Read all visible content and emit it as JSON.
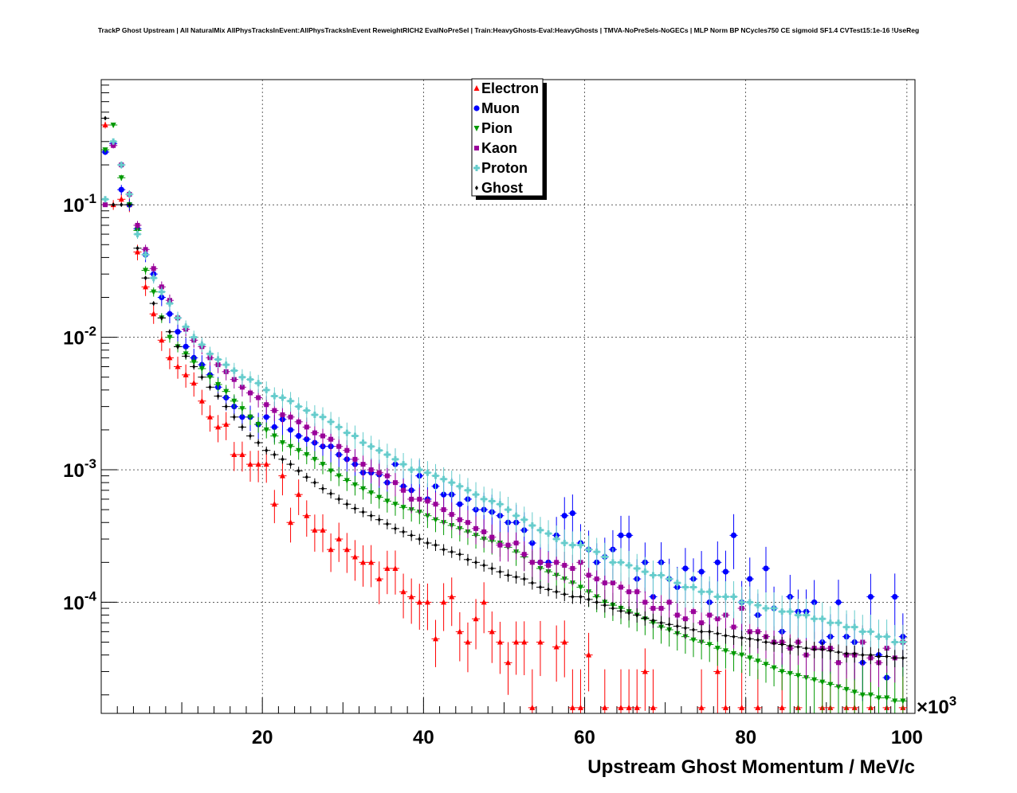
{
  "chart_data": {
    "type": "scatter",
    "title": "TrackP Ghost Upstream | All NaturalMix AllPhysTracksInEvent:AllPhysTracksInEvent ReweightRICH2 EvalNoPreSel | Train:HeavyGhosts-Eval:HeavyGhosts | TMVA-NoPreSels-NoGECs | MLP Norm BP NCycles750 CE sigmoid SF1.4 CVTest15:1e-16 !UseReg",
    "xlabel": "Upstream Ghost Momentum / MeV/c",
    "x_multiplier": "×10",
    "x_multiplier_exp": "3",
    "ylabel": "",
    "yscale": "log",
    "xlim": [
      0,
      101
    ],
    "ylim": [
      1.45e-05,
      0.88
    ],
    "grid": true,
    "legend_position": "top-center",
    "x_ticks": [
      "20",
      "40",
      "60",
      "80",
      "100"
    ],
    "x_tick_values": [
      20,
      40,
      60,
      80,
      100
    ],
    "y_ticks": [
      {
        "base": "10",
        "exp": "-1",
        "value": 0.1
      },
      {
        "base": "10",
        "exp": "-2",
        "value": 0.01
      },
      {
        "base": "10",
        "exp": "-3",
        "value": 0.001
      },
      {
        "base": "10",
        "exp": "-4",
        "value": 0.0001
      }
    ],
    "series": [
      {
        "name": "Electron",
        "color": "#ff0000",
        "marker": "triangle-up",
        "err_scale": 0.06,
        "values": [
          0.4,
          0.1,
          0.11,
          0.1,
          0.044,
          0.024,
          0.015,
          0.0095,
          0.007,
          0.006,
          0.0052,
          0.0045,
          0.0033,
          0.0025,
          0.0021,
          0.0022,
          0.0013,
          0.0013,
          0.0011,
          0.0011,
          0.0011,
          0.00055,
          0.0009,
          0.0004,
          0.00065,
          0.00045,
          0.00035,
          0.00035,
          0.00025,
          0.0003,
          0.00025,
          0.00022,
          0.0002,
          0.0002,
          0.00015,
          0.00018,
          0.00018,
          0.00012,
          0.00011,
          0.0001,
          0.0001,
          5.3e-05,
          0.0001,
          0.00011,
          6e-05,
          5e-05,
          7.5e-05,
          0.0001,
          6e-05,
          5e-05,
          3.5e-05,
          5e-05,
          5e-05,
          1.6e-05,
          5e-05,
          null,
          4.6e-05,
          5e-05,
          1.6e-05,
          1.6e-05,
          4e-05,
          null,
          1.6e-05,
          null,
          1.6e-05,
          1.6e-05,
          1.6e-05,
          3e-05,
          1.6e-05,
          null,
          null,
          null,
          null,
          null,
          1.6e-05,
          null,
          3e-05,
          1.6e-05,
          null,
          1.6e-05,
          null,
          1.6e-05,
          null,
          null,
          1.6e-05,
          null,
          1.6e-05,
          null,
          null,
          1.6e-05,
          1.6e-05,
          null,
          1.6e-05,
          1.6e-05,
          null,
          1.6e-05,
          null,
          1.6e-05,
          null,
          1.6e-05
        ]
      },
      {
        "name": "Muon",
        "color": "#0000ff",
        "marker": "circle",
        "err_scale": 0.05,
        "values": [
          0.25,
          0.29,
          0.13,
          0.1,
          0.066,
          0.042,
          0.03,
          0.02,
          0.015,
          0.011,
          0.0085,
          0.007,
          0.0062,
          0.0052,
          0.0042,
          0.0035,
          0.003,
          0.0025,
          0.0025,
          0.0022,
          0.0025,
          0.0021,
          0.0024,
          0.002,
          0.0018,
          0.0017,
          0.0016,
          0.0015,
          0.0015,
          0.0013,
          0.0012,
          0.0011,
          0.00095,
          0.00095,
          0.00092,
          0.0008,
          0.0011,
          0.00075,
          0.0007,
          0.0009,
          0.0006,
          0.00075,
          0.00065,
          0.00065,
          0.00055,
          0.0006,
          0.0005,
          0.0005,
          0.00048,
          0.00045,
          0.0004,
          0.0004,
          0.00035,
          0.00028,
          0.0002,
          0.0002,
          0.00032,
          0.00045,
          0.00047,
          0.00028,
          0.00025,
          0.0002,
          0.00022,
          0.00025,
          0.00032,
          0.00032,
          0.00015,
          0.0002,
          0.00011,
          0.0002,
          0.00015,
          0.00013,
          0.00018,
          0.00015,
          0.00017,
          0.0001,
          0.0002,
          0.00017,
          0.00032,
          0.0001,
          0.00015,
          8e-05,
          0.00018,
          9e-05,
          6e-05,
          0.00011,
          8.5e-05,
          8.5e-05,
          0.0001,
          5e-05,
          5.5e-05,
          0.0001,
          5.5e-05,
          5e-05,
          3.5e-05,
          0.00011,
          4e-05,
          2.7e-05,
          0.00011,
          5.5e-05
        ]
      },
      {
        "name": "Pion",
        "color": "#009900",
        "marker": "triangle-down",
        "err_scale": 0.03,
        "values": [
          0.26,
          0.4,
          0.16,
          0.1,
          0.064,
          0.032,
          0.022,
          0.014,
          0.01,
          0.0085,
          0.0075,
          0.0065,
          0.0058,
          0.005,
          0.0044,
          0.0039,
          0.0033,
          0.0029,
          0.0025,
          0.0022,
          0.002,
          0.0018,
          0.0016,
          0.0015,
          0.0014,
          0.0013,
          0.0012,
          0.0011,
          0.00098,
          0.0009,
          0.00083,
          0.00077,
          0.00072,
          0.00067,
          0.00062,
          0.00058,
          0.00055,
          0.00052,
          0.0005,
          0.00048,
          0.00045,
          0.00042,
          0.0004,
          0.00038,
          0.00036,
          0.00034,
          0.00032,
          0.0003,
          0.00029,
          0.00028,
          0.00026,
          0.00024,
          0.00022,
          0.0002,
          0.00018,
          0.00017,
          0.00016,
          0.00015,
          0.00014,
          0.00013,
          0.00012,
          0.00011,
          0.0001,
          9.5e-05,
          9e-05,
          8.5e-05,
          8e-05,
          7.5e-05,
          7e-05,
          6.5e-05,
          6.2e-05,
          5.8e-05,
          5.5e-05,
          5.2e-05,
          5e-05,
          4.8e-05,
          4.5e-05,
          4.3e-05,
          4.1e-05,
          4e-05,
          3.8e-05,
          3.6e-05,
          3.4e-05,
          3.2e-05,
          3e-05,
          2.9e-05,
          2.8e-05,
          2.7e-05,
          2.6e-05,
          2.5e-05,
          2.4e-05,
          2.3e-05,
          2.2e-05,
          2.1e-05,
          2e-05,
          2e-05,
          1.9e-05,
          1.9e-05,
          1.8e-05,
          1.8e-05
        ]
      },
      {
        "name": "Kaon",
        "color": "#990099",
        "marker": "square",
        "err_scale": 0.035,
        "values": [
          0.1,
          0.28,
          0.2,
          0.12,
          0.07,
          0.046,
          0.033,
          0.024,
          0.019,
          0.014,
          0.0115,
          0.0095,
          0.0085,
          0.007,
          0.0062,
          0.0055,
          0.0048,
          0.0042,
          0.0038,
          0.0035,
          0.0031,
          0.0028,
          0.0026,
          0.0025,
          0.0023,
          0.0021,
          0.0019,
          0.0018,
          0.0017,
          0.0015,
          0.0014,
          0.0012,
          0.0011,
          0.001,
          0.00095,
          0.0009,
          0.0008,
          0.0007,
          0.0006,
          0.0006,
          0.00058,
          0.00055,
          0.0005,
          0.00046,
          0.00042,
          0.0004,
          0.00036,
          0.00034,
          0.00031,
          0.00027,
          0.00027,
          0.00028,
          0.00023,
          0.0002,
          0.0002,
          0.00019,
          0.0002,
          0.00019,
          0.00018,
          0.0002,
          0.00016,
          0.00015,
          0.00014,
          0.00014,
          0.00013,
          0.00012,
          0.00012,
          0.0001,
          9e-05,
          9e-05,
          0.0001,
          8e-05,
          7.5e-05,
          8.5e-05,
          7e-05,
          8e-05,
          7.5e-05,
          8e-05,
          6.5e-05,
          9e-05,
          6e-05,
          6e-05,
          5.5e-05,
          5e-05,
          5e-05,
          4.5e-05,
          5e-05,
          4e-05,
          4.5e-05,
          4.5e-05,
          4.5e-05,
          3.5e-05,
          4e-05,
          4e-05,
          5e-05,
          3.8e-05,
          3.5e-05,
          4.5e-05,
          3.8e-05,
          5e-05
        ]
      },
      {
        "name": "Proton",
        "color": "#66cccc",
        "marker": "cross",
        "err_scale": 0.035,
        "values": [
          0.11,
          0.3,
          0.2,
          0.12,
          0.06,
          0.042,
          0.028,
          0.022,
          0.018,
          0.014,
          0.012,
          0.01,
          0.0088,
          0.0075,
          0.0068,
          0.0062,
          0.0056,
          0.005,
          0.0048,
          0.0045,
          0.004,
          0.0036,
          0.0035,
          0.0033,
          0.003,
          0.0028,
          0.0026,
          0.0025,
          0.0023,
          0.0021,
          0.0019,
          0.0018,
          0.0016,
          0.0015,
          0.0014,
          0.0013,
          0.0012,
          0.0011,
          0.001,
          0.001,
          0.00095,
          0.0009,
          0.00085,
          0.0008,
          0.00075,
          0.0007,
          0.00065,
          0.0006,
          0.00058,
          0.00055,
          0.0005,
          0.00045,
          0.00042,
          0.00038,
          0.00035,
          0.00033,
          0.0003,
          0.00028,
          0.00027,
          0.00027,
          0.00025,
          0.00024,
          0.00022,
          0.0002,
          0.0002,
          0.00019,
          0.00018,
          0.00017,
          0.00016,
          0.00016,
          0.00015,
          0.00014,
          0.00013,
          0.00013,
          0.00012,
          0.00012,
          0.00011,
          0.00011,
          0.00011,
          0.0001,
          0.0001,
          9.5e-05,
          9e-05,
          9e-05,
          8.5e-05,
          8.5e-05,
          8e-05,
          8e-05,
          7.5e-05,
          7.5e-05,
          7e-05,
          7e-05,
          6.5e-05,
          6.5e-05,
          6e-05,
          6e-05,
          5.5e-05,
          5.5e-05,
          5e-05,
          5e-05
        ]
      },
      {
        "name": "Ghost",
        "color": "#000000",
        "marker": "diamond",
        "err_scale": 0.015,
        "values": [
          0.45,
          0.1,
          0.1,
          0.1,
          0.047,
          0.028,
          0.018,
          0.014,
          0.011,
          0.0085,
          0.0072,
          0.006,
          0.005,
          0.0042,
          0.0036,
          0.003,
          0.0025,
          0.0021,
          0.0018,
          0.0016,
          0.0014,
          0.0013,
          0.0012,
          0.0011,
          0.00098,
          0.00088,
          0.0008,
          0.00072,
          0.00066,
          0.0006,
          0.00055,
          0.00051,
          0.00048,
          0.00045,
          0.00042,
          0.00039,
          0.00036,
          0.00034,
          0.00032,
          0.0003,
          0.00028,
          0.00027,
          0.00025,
          0.00024,
          0.00023,
          0.00021,
          0.0002,
          0.00019,
          0.00018,
          0.00017,
          0.00016,
          0.000155,
          0.00015,
          0.00014,
          0.00013,
          0.000125,
          0.00012,
          0.000115,
          0.00011,
          0.00011,
          0.000105,
          0.0001,
          9.5e-05,
          9e-05,
          8.6e-05,
          8.3e-05,
          8e-05,
          7.6e-05,
          7.3e-05,
          7e-05,
          6.8e-05,
          6.6e-05,
          6.4e-05,
          6.2e-05,
          6e-05,
          6e-05,
          5.8e-05,
          5.6e-05,
          5.5e-05,
          5.4e-05,
          5.3e-05,
          5.2e-05,
          5e-05,
          4.9e-05,
          4.8e-05,
          4.7e-05,
          4.6e-05,
          4.5e-05,
          4.4e-05,
          4.4e-05,
          4.3e-05,
          4.2e-05,
          4.1e-05,
          4.1e-05,
          4e-05,
          4e-05,
          3.9e-05,
          3.9e-05,
          3.8e-05,
          3.8e-05
        ]
      }
    ]
  }
}
